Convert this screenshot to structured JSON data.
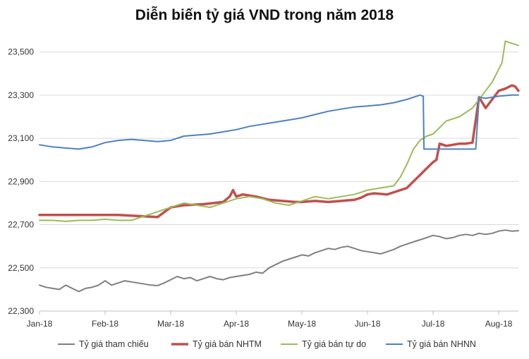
{
  "chart_data": {
    "type": "line",
    "title": "Diễn biến tỷ giá VND trong năm 2018",
    "xlabel": "",
    "ylabel": "",
    "ylim": [
      22300,
      23600
    ],
    "xlim": [
      0,
      7.3
    ],
    "y_ticks": [
      22300,
      22500,
      22700,
      22900,
      23100,
      23300,
      23500
    ],
    "y_tick_labels": [
      "22,300",
      "22,500",
      "22,700",
      "22,900",
      "23,100",
      "23,300",
      "23,500"
    ],
    "x_ticks": [
      0,
      1,
      2,
      3,
      4,
      5,
      6,
      7
    ],
    "x_tick_labels": [
      "Jan-18",
      "Feb-18",
      "Mar-18",
      "Apr-18",
      "May-18",
      "Jun-18",
      "Jul-18",
      "Aug-18"
    ],
    "grid": true,
    "legend_position": "bottom",
    "series": [
      {
        "name": "Tỷ giá tham chiếu",
        "color": "#7f7f7f",
        "stroke_width": 2,
        "x": [
          0,
          0.1,
          0.2,
          0.3,
          0.4,
          0.5,
          0.6,
          0.7,
          0.8,
          0.9,
          1.0,
          1.1,
          1.2,
          1.3,
          1.4,
          1.5,
          1.6,
          1.7,
          1.8,
          1.9,
          2.0,
          2.1,
          2.2,
          2.3,
          2.4,
          2.5,
          2.6,
          2.7,
          2.8,
          2.9,
          3.0,
          3.1,
          3.2,
          3.3,
          3.4,
          3.5,
          3.6,
          3.7,
          3.8,
          3.9,
          4.0,
          4.1,
          4.2,
          4.3,
          4.4,
          4.5,
          4.6,
          4.7,
          4.8,
          4.9,
          5.0,
          5.1,
          5.2,
          5.3,
          5.4,
          5.5,
          5.6,
          5.7,
          5.8,
          5.9,
          6.0,
          6.1,
          6.2,
          6.3,
          6.4,
          6.5,
          6.6,
          6.7,
          6.8,
          6.9,
          7.0,
          7.1,
          7.2,
          7.3
        ],
        "values": [
          22420,
          22410,
          22405,
          22400,
          22420,
          22405,
          22390,
          22405,
          22410,
          22420,
          22440,
          22420,
          22430,
          22440,
          22435,
          22430,
          22425,
          22420,
          22418,
          22430,
          22445,
          22460,
          22450,
          22455,
          22440,
          22450,
          22460,
          22450,
          22445,
          22455,
          22460,
          22465,
          22470,
          22480,
          22475,
          22500,
          22515,
          22530,
          22540,
          22550,
          22560,
          22555,
          22570,
          22580,
          22590,
          22585,
          22595,
          22600,
          22590,
          22580,
          22575,
          22570,
          22565,
          22575,
          22585,
          22600,
          22610,
          22620,
          22630,
          22640,
          22650,
          22645,
          22635,
          22640,
          22650,
          22655,
          22650,
          22660,
          22655,
          22660,
          22670,
          22675,
          22670,
          22672
        ]
      },
      {
        "name": "Tỷ giá bán NHTM",
        "color": "#c0504d",
        "stroke_width": 3.5,
        "x": [
          0,
          0.5,
          1.0,
          1.2,
          1.5,
          1.8,
          2.0,
          2.2,
          2.5,
          2.8,
          2.9,
          2.95,
          3.0,
          3.1,
          3.3,
          3.5,
          3.7,
          3.9,
          4.0,
          4.2,
          4.4,
          4.6,
          4.8,
          4.9,
          5.0,
          5.1,
          5.3,
          5.4,
          5.5,
          5.6,
          5.7,
          5.8,
          5.9,
          6.0,
          6.05,
          6.1,
          6.2,
          6.3,
          6.4,
          6.5,
          6.6,
          6.7,
          6.8,
          6.9,
          7.0,
          7.1,
          7.2,
          7.25,
          7.3
        ],
        "values": [
          22745,
          22745,
          22745,
          22745,
          22740,
          22735,
          22780,
          22790,
          22795,
          22805,
          22830,
          22860,
          22830,
          22840,
          22830,
          22815,
          22810,
          22805,
          22805,
          22810,
          22805,
          22810,
          22815,
          22825,
          22840,
          22845,
          22840,
          22850,
          22860,
          22870,
          22900,
          22930,
          22960,
          22990,
          23000,
          23075,
          23065,
          23070,
          23075,
          23075,
          23080,
          23290,
          23240,
          23280,
          23320,
          23330,
          23345,
          23340,
          23320
        ]
      },
      {
        "name": "Tỷ giá bán tự do",
        "color": "#9bbb59",
        "stroke_width": 2,
        "x": [
          0,
          0.2,
          0.4,
          0.6,
          0.8,
          1.0,
          1.2,
          1.4,
          1.6,
          1.8,
          2.0,
          2.2,
          2.4,
          2.6,
          2.8,
          3.0,
          3.2,
          3.4,
          3.6,
          3.8,
          4.0,
          4.2,
          4.4,
          4.6,
          4.8,
          5.0,
          5.2,
          5.4,
          5.5,
          5.6,
          5.7,
          5.8,
          5.9,
          6.0,
          6.1,
          6.2,
          6.4,
          6.6,
          6.7,
          6.8,
          6.9,
          7.0,
          7.05,
          7.1,
          7.2,
          7.3
        ],
        "values": [
          22720,
          22720,
          22715,
          22720,
          22720,
          22725,
          22720,
          22720,
          22740,
          22760,
          22780,
          22800,
          22790,
          22780,
          22800,
          22820,
          22830,
          22820,
          22800,
          22790,
          22810,
          22830,
          22820,
          22830,
          22840,
          22860,
          22870,
          22880,
          22920,
          22980,
          23050,
          23090,
          23110,
          23120,
          23150,
          23180,
          23200,
          23240,
          23280,
          23320,
          23360,
          23420,
          23450,
          23550,
          23540,
          23530
        ]
      },
      {
        "name": "Tỷ giá bán NHNN",
        "color": "#4f81bd",
        "stroke_width": 2,
        "x": [
          0,
          0.2,
          0.4,
          0.6,
          0.8,
          1.0,
          1.2,
          1.4,
          1.6,
          1.8,
          2.0,
          2.2,
          2.4,
          2.6,
          2.8,
          3.0,
          3.2,
          3.4,
          3.6,
          3.8,
          4.0,
          4.2,
          4.4,
          4.6,
          4.8,
          5.0,
          5.2,
          5.4,
          5.6,
          5.8,
          5.85,
          5.86,
          6.2,
          6.4,
          6.6,
          6.65,
          6.7,
          6.8,
          7.0,
          7.2,
          7.3
        ],
        "values": [
          23070,
          23060,
          23055,
          23050,
          23060,
          23080,
          23090,
          23095,
          23090,
          23085,
          23090,
          23110,
          23115,
          23120,
          23130,
          23140,
          23155,
          23165,
          23175,
          23185,
          23195,
          23210,
          23225,
          23235,
          23245,
          23250,
          23255,
          23265,
          23280,
          23300,
          23295,
          23050,
          23050,
          23050,
          23050,
          23050,
          23290,
          23285,
          23295,
          23300,
          23300
        ]
      }
    ]
  }
}
